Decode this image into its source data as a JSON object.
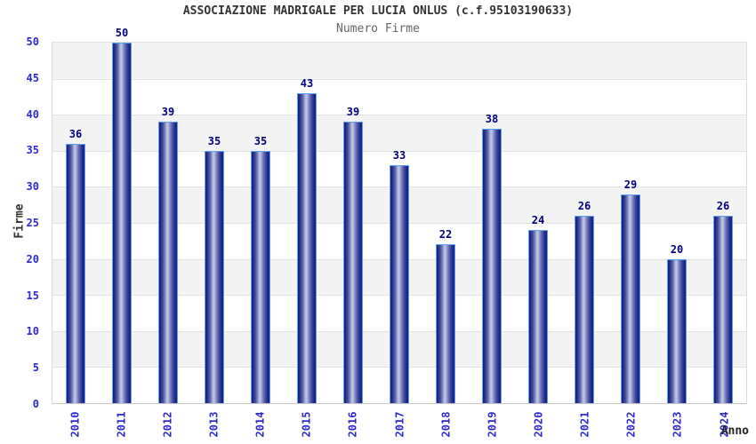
{
  "chart_data": {
    "type": "bar",
    "title": "ASSOCIAZIONE MADRIGALE PER LUCIA ONLUS (c.f.95103190633)",
    "subtitle": "Numero Firme",
    "xlabel": "Anno",
    "ylabel": "Firme",
    "categories": [
      "2010",
      "2011",
      "2012",
      "2013",
      "2014",
      "2015",
      "2016",
      "2017",
      "2018",
      "2019",
      "2020",
      "2021",
      "2022",
      "2023",
      "2024"
    ],
    "values": [
      36,
      50,
      39,
      35,
      35,
      43,
      39,
      33,
      22,
      38,
      24,
      26,
      29,
      20,
      26
    ],
    "ylim": [
      0,
      50
    ],
    "yticks": [
      0,
      5,
      10,
      15,
      20,
      25,
      30,
      35,
      40,
      45,
      50
    ],
    "grid": "alternating horizontal bands every 5 units, gridline at each tick",
    "legend": "none",
    "colors": {
      "bar_dark": "#161e7c",
      "bar_highlight": "#c7cde8",
      "bar_border": "#58a2f0",
      "value_label": "#00007d",
      "tick_label": "#2a2ad0",
      "band_gray": "#f3f3f3",
      "band_white": "#ffffff",
      "title_text": "#333333",
      "subtitle_text": "#666666"
    }
  }
}
